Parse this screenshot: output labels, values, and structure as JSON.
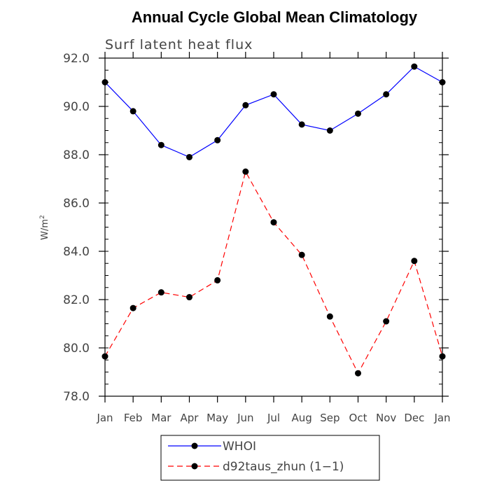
{
  "chart_data": {
    "type": "line",
    "title": "Annual Cycle Global Mean Climatology",
    "subtitle": "Surf latent heat flux",
    "ylabel_base": "W/m",
    "ylabel_sup": "2",
    "xlabel": "",
    "ylim": [
      78.0,
      92.0
    ],
    "yticks": [
      "78.0",
      "80.0",
      "82.0",
      "84.0",
      "86.0",
      "88.0",
      "90.0",
      "92.0"
    ],
    "categories": [
      "Jan",
      "Feb",
      "Mar",
      "Apr",
      "May",
      "Jun",
      "Jul",
      "Aug",
      "Sep",
      "Oct",
      "Nov",
      "Dec",
      "Jan"
    ],
    "series": [
      {
        "name": "WHOI",
        "color": "#0000ff",
        "dash": "solid",
        "values": [
          91.0,
          89.8,
          88.4,
          87.9,
          88.6,
          90.05,
          90.5,
          89.25,
          89.0,
          89.7,
          90.5,
          91.65,
          91.0
        ]
      },
      {
        "name": "d92taus_zhun (1−1)",
        "color": "#ff0000",
        "dash": "dashed",
        "values": [
          79.65,
          81.65,
          82.3,
          82.1,
          82.8,
          87.3,
          85.2,
          83.85,
          81.3,
          78.95,
          81.1,
          83.6,
          79.65
        ]
      }
    ]
  }
}
